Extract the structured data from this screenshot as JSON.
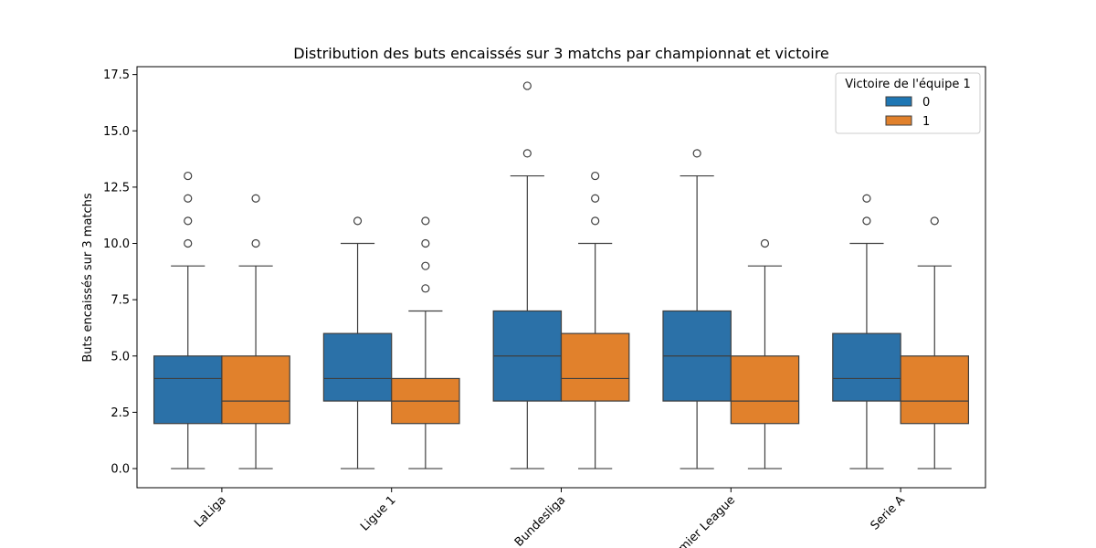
{
  "chart_data": {
    "type": "box",
    "title": "Distribution des buts encaissés sur 3 matchs par championnat et victoire",
    "xlabel": "",
    "ylabel": "Buts encaissés sur 3 matchs",
    "ylim": [
      -0.85,
      17.85
    ],
    "yticks": [
      0.0,
      2.5,
      5.0,
      7.5,
      10.0,
      12.5,
      15.0,
      17.5
    ],
    "ytick_labels": [
      "0.0",
      "2.5",
      "5.0",
      "7.5",
      "10.0",
      "12.5",
      "15.0",
      "17.5"
    ],
    "categories": [
      "LaLiga",
      "Ligue 1",
      "Bundesliga",
      "Premier League",
      "Serie A"
    ],
    "legend": {
      "title": "Victoire de l'équipe 1",
      "position": "top-right",
      "entries": [
        "0",
        "1"
      ]
    },
    "series": [
      {
        "name": "0",
        "color": "#1f77b4",
        "boxes": [
          {
            "whislo": 0,
            "q1": 2,
            "med": 4,
            "q3": 5,
            "whishi": 9,
            "fliers": [
              10,
              11,
              12,
              13
            ]
          },
          {
            "whislo": 0,
            "q1": 3,
            "med": 4,
            "q3": 6,
            "whishi": 10,
            "fliers": [
              11
            ]
          },
          {
            "whislo": 0,
            "q1": 3,
            "med": 5,
            "q3": 7,
            "whishi": 13,
            "fliers": [
              14,
              17
            ]
          },
          {
            "whislo": 0,
            "q1": 3,
            "med": 5,
            "q3": 7,
            "whishi": 13,
            "fliers": [
              14
            ]
          },
          {
            "whislo": 0,
            "q1": 3,
            "med": 4,
            "q3": 6,
            "whishi": 10,
            "fliers": [
              11,
              12
            ]
          }
        ]
      },
      {
        "name": "1",
        "color": "#ff7f0e",
        "boxes": [
          {
            "whislo": 0,
            "q1": 2,
            "med": 3,
            "q3": 5,
            "whishi": 9,
            "fliers": [
              10,
              12
            ]
          },
          {
            "whislo": 0,
            "q1": 2,
            "med": 3,
            "q3": 4,
            "whishi": 7,
            "fliers": [
              8,
              9,
              10,
              11
            ]
          },
          {
            "whislo": 0,
            "q1": 3,
            "med": 4,
            "q3": 6,
            "whishi": 10,
            "fliers": [
              11,
              12,
              13
            ]
          },
          {
            "whislo": 0,
            "q1": 2,
            "med": 3,
            "q3": 5,
            "whishi": 9,
            "fliers": [
              10
            ]
          },
          {
            "whislo": 0,
            "q1": 2,
            "med": 3,
            "q3": 5,
            "whishi": 9,
            "fliers": [
              11
            ]
          }
        ]
      }
    ],
    "grid": false
  }
}
